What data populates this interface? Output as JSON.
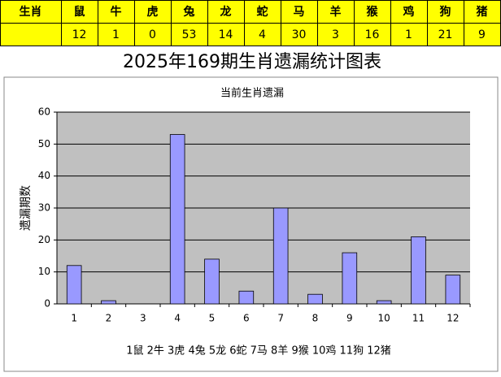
{
  "table": {
    "header": [
      "生肖",
      "鼠",
      "牛",
      "虎",
      "兔",
      "龙",
      "蛇",
      "马",
      "羊",
      "猴",
      "鸡",
      "狗",
      "猪"
    ],
    "counts": [
      12,
      1,
      0,
      53,
      14,
      4,
      30,
      3,
      16,
      1,
      21,
      9
    ]
  },
  "heading": "2025年169期生肖遗漏统计图表",
  "chart_data": {
    "type": "bar",
    "title": "当前生肖遗漏",
    "y_label": "遗漏期数",
    "categories": [
      "1",
      "2",
      "3",
      "4",
      "5",
      "6",
      "7",
      "8",
      "9",
      "10",
      "11",
      "12"
    ],
    "values": [
      12,
      1,
      0,
      53,
      14,
      4,
      30,
      3,
      16,
      1,
      21,
      9
    ],
    "color": "#9999ff",
    "ylim": [
      0,
      60
    ],
    "yticks": [
      0,
      10,
      20,
      30,
      40,
      50,
      60
    ],
    "grid": true,
    "caption": "1鼠 2牛 3虎 4兔 5龙 6蛇 7马 8羊 9猴 10鸡 11狗 12猪"
  }
}
